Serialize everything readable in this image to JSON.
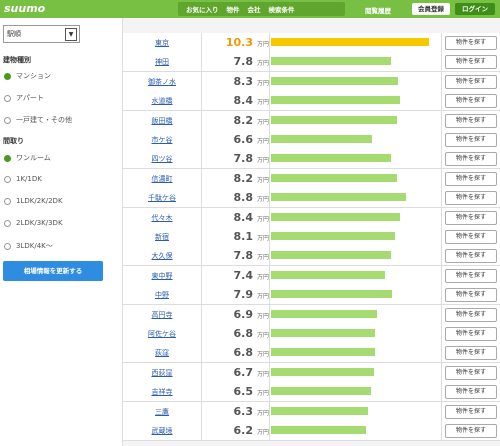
{
  "header": {
    "logo": "suumo",
    "nav": [
      "お気に入り",
      "物件",
      "会社",
      "検索条件"
    ],
    "history": "閲覧履歴",
    "register": "会員登録",
    "login": "ログイン"
  },
  "sidebar": {
    "select": "駅順",
    "building": {
      "title": "建物種別",
      "options": [
        "マンション",
        "アパート",
        "一戸建て・その他"
      ]
    },
    "layout": {
      "title": "間取り",
      "options": [
        "ワンルーム",
        "1K/1DK",
        "1LDK/2K/2DK",
        "2LDK/3K/3DK",
        "3LDK/4K〜"
      ]
    },
    "button": "相場情報を更新する"
  },
  "table": {
    "rows": [
      {
        "station": "東京",
        "rent": 10.3,
        "unit": "万円",
        "button": "物件を探す"
      },
      {
        "station": "神田",
        "rent": 7.8,
        "unit": "万円",
        "button": "物件を探す"
      },
      {
        "station": "御茶ノ水",
        "rent": 8.3,
        "unit": "万円",
        "button": "物件を探す"
      },
      {
        "station": "水道橋",
        "rent": 8.4,
        "unit": "万円",
        "button": "物件を探す"
      },
      {
        "station": "飯田橋",
        "rent": 8.2,
        "unit": "万円",
        "button": "物件を探す"
      },
      {
        "station": "市ケ谷",
        "rent": 6.6,
        "unit": "万円",
        "button": "物件を探す"
      },
      {
        "station": "四ツ谷",
        "rent": 7.8,
        "unit": "万円",
        "button": "物件を探す"
      },
      {
        "station": "信濃町",
        "rent": 8.2,
        "unit": "万円",
        "button": "物件を探す"
      },
      {
        "station": "千駄ケ谷",
        "rent": 8.8,
        "unit": "万円",
        "button": "物件を探す"
      },
      {
        "station": "代々木",
        "rent": 8.4,
        "unit": "万円",
        "button": "物件を探す"
      },
      {
        "station": "新宿",
        "rent": 8.1,
        "unit": "万円",
        "button": "物件を探す"
      },
      {
        "station": "大久保",
        "rent": 7.8,
        "unit": "万円",
        "button": "物件を探す"
      },
      {
        "station": "東中野",
        "rent": 7.4,
        "unit": "万円",
        "button": "物件を探す"
      },
      {
        "station": "中野",
        "rent": 7.9,
        "unit": "万円",
        "button": "物件を探す"
      },
      {
        "station": "高円寺",
        "rent": 6.9,
        "unit": "万円",
        "button": "物件を探す"
      },
      {
        "station": "阿佐ケ谷",
        "rent": 6.8,
        "unit": "万円",
        "button": "物件を探す"
      },
      {
        "station": "荻窪",
        "rent": 6.8,
        "unit": "万円",
        "button": "物件を探す"
      },
      {
        "station": "西荻窪",
        "rent": 6.7,
        "unit": "万円",
        "button": "物件を探す"
      },
      {
        "station": "吉祥寺",
        "rent": 6.5,
        "unit": "万円",
        "button": "物件を探す"
      },
      {
        "station": "三鷹",
        "rent": 6.3,
        "unit": "万円",
        "button": "物件を探す"
      },
      {
        "station": "武蔵境",
        "rent": 6.2,
        "unit": "万円",
        "button": "物件を探す"
      }
    ]
  }
}
